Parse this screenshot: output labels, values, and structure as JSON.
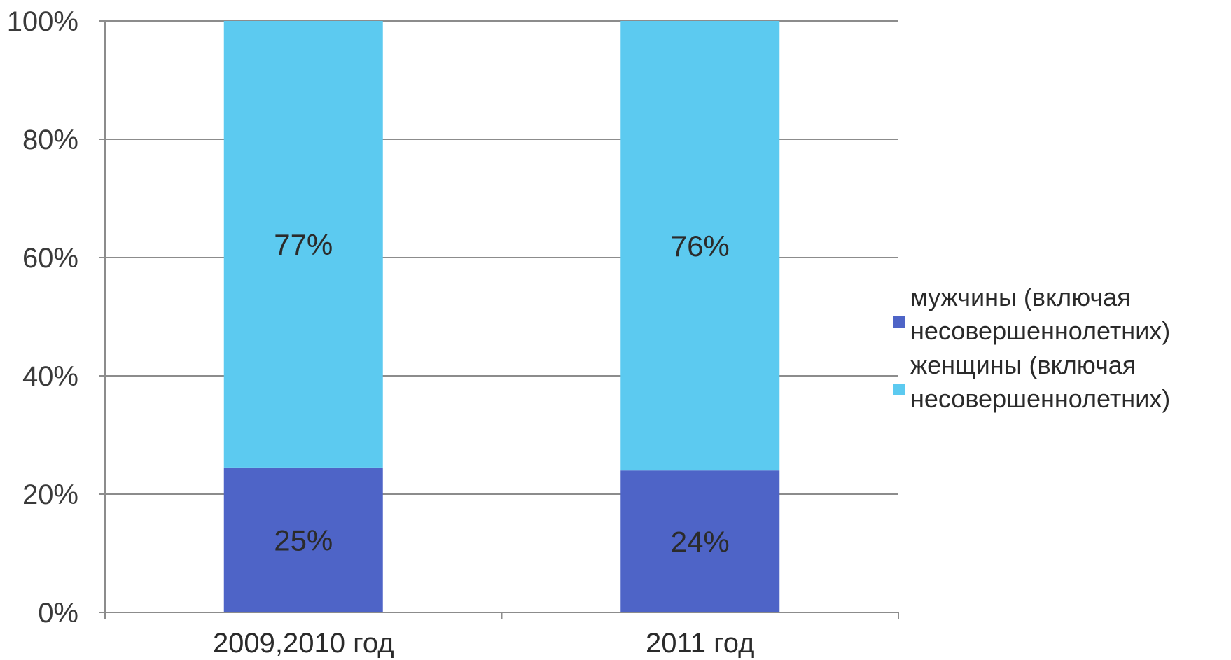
{
  "chart_data": {
    "type": "bar",
    "stacked": "percent",
    "categories": [
      "2009,2010 год",
      "2011 год"
    ],
    "series": [
      {
        "name": "мужчины (включая несовершеннолетних)",
        "name_lines": [
          "мужчины (включая",
          "несовершеннолетних)"
        ],
        "values": [
          25,
          24
        ],
        "labels": [
          "25%",
          "24%"
        ],
        "color": "#4e64c7"
      },
      {
        "name": "женщины (включая несовершеннолетних)",
        "name_lines": [
          "женщины (включая",
          "несовершеннолетних)"
        ],
        "values": [
          77,
          76
        ],
        "labels": [
          "77%",
          "76%"
        ],
        "color": "#5ccaf0"
      }
    ],
    "ylim": [
      0,
      100
    ],
    "yticks": [
      0,
      20,
      40,
      60,
      80,
      100
    ],
    "ytick_labels": [
      "0%",
      "20%",
      "40%",
      "60%",
      "80%",
      "100%"
    ],
    "grid": true,
    "legend": "right",
    "title": "",
    "xlabel": "",
    "ylabel": ""
  }
}
